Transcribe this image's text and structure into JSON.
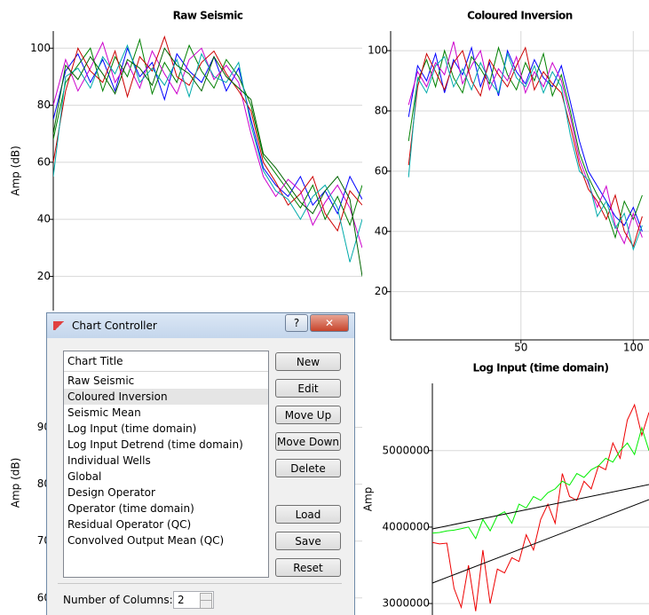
{
  "chart_data": [
    {
      "type": "line",
      "title": "Raw Seismic",
      "y_label": "Amp (dB)",
      "x": [
        0,
        4,
        8,
        12,
        16,
        20,
        24,
        28,
        32,
        36,
        40,
        44,
        48,
        52,
        56,
        60,
        64,
        68,
        72,
        76,
        80,
        84,
        88,
        92,
        96,
        100
      ],
      "xlim": [
        0,
        100
      ],
      "ylim": [
        8,
        106
      ],
      "yticks": [
        20,
        40,
        60,
        80,
        100
      ],
      "grid": true,
      "series": [
        {
          "color": "#0000ff",
          "values": [
            75,
            92,
            98,
            88,
            96,
            85,
            100,
            90,
            95,
            82,
            98,
            92,
            88,
            97,
            85,
            93,
            75,
            58,
            52,
            48,
            55,
            45,
            50,
            42,
            55,
            47
          ]
        },
        {
          "color": "#008000",
          "values": [
            68,
            88,
            94,
            100,
            85,
            97,
            90,
            103,
            84,
            95,
            88,
            101,
            92,
            86,
            96,
            90,
            80,
            62,
            56,
            50,
            44,
            52,
            40,
            48,
            38,
            52
          ]
        },
        {
          "color": "#cc00cc",
          "values": [
            80,
            96,
            85,
            93,
            102,
            88,
            95,
            86,
            99,
            91,
            84,
            96,
            100,
            89,
            94,
            88,
            70,
            55,
            48,
            54,
            50,
            38,
            46,
            52,
            44,
            30
          ]
        },
        {
          "color": "#cc0000",
          "values": [
            60,
            85,
            100,
            92,
            88,
            99,
            83,
            97,
            92,
            104,
            90,
            87,
            95,
            99,
            91,
            85,
            78,
            60,
            53,
            45,
            49,
            55,
            42,
            36,
            50,
            45
          ]
        },
        {
          "color": "#00aaaa",
          "values": [
            55,
            90,
            93,
            86,
            97,
            91,
            101,
            88,
            93,
            87,
            96,
            83,
            98,
            90,
            88,
            95,
            73,
            57,
            50,
            47,
            40,
            48,
            52,
            44,
            25,
            40
          ]
        },
        {
          "color": "#006400",
          "values": [
            70,
            94,
            89,
            97,
            91,
            84,
            96,
            93,
            87,
            100,
            94,
            91,
            85,
            97,
            90,
            86,
            82,
            63,
            58,
            52,
            46,
            42,
            50,
            55,
            47,
            20
          ]
        }
      ]
    },
    {
      "type": "line",
      "title": "Coloured Inversion",
      "x": [
        0,
        4,
        8,
        12,
        16,
        20,
        24,
        28,
        32,
        36,
        40,
        44,
        48,
        52,
        56,
        60,
        64,
        68,
        72,
        76,
        80,
        84,
        88,
        92,
        96,
        100,
        104
      ],
      "xlim": [
        -8,
        107
      ],
      "xticks": [
        50,
        100
      ],
      "ylim": [
        4,
        106.5
      ],
      "yticks": [
        20,
        40,
        60,
        80,
        100
      ],
      "grid": true,
      "series": [
        {
          "color": "#0000ff",
          "values": [
            78,
            95,
            90,
            99,
            86,
            97,
            92,
            101,
            88,
            96,
            85,
            100,
            93,
            89,
            97,
            91,
            88,
            95,
            83,
            70,
            60,
            55,
            50,
            45,
            42,
            48,
            40
          ]
        },
        {
          "color": "#008000",
          "values": [
            70,
            90,
            97,
            88,
            100,
            91,
            86,
            98,
            94,
            89,
            101,
            92,
            87,
            96,
            90,
            99,
            85,
            92,
            80,
            66,
            58,
            52,
            47,
            38,
            50,
            44,
            52
          ]
        },
        {
          "color": "#cc00cc",
          "values": [
            82,
            93,
            88,
            96,
            92,
            103,
            89,
            95,
            100,
            87,
            94,
            90,
            98,
            86,
            93,
            88,
            96,
            90,
            78,
            64,
            56,
            48,
            55,
            42,
            36,
            46,
            38
          ]
        },
        {
          "color": "#cc0000",
          "values": [
            62,
            88,
            99,
            93,
            87,
            96,
            100,
            90,
            85,
            97,
            92,
            88,
            95,
            101,
            87,
            93,
            89,
            86,
            75,
            62,
            54,
            50,
            44,
            52,
            40,
            35,
            45
          ]
        },
        {
          "color": "#00aaaa",
          "values": [
            58,
            91,
            86,
            95,
            98,
            88,
            94,
            87,
            96,
            90,
            86,
            99,
            91,
            88,
            95,
            86,
            93,
            88,
            72,
            60,
            57,
            45,
            50,
            41,
            46,
            34,
            42
          ]
        }
      ]
    },
    {
      "type": "line",
      "title": "Log Input (time domain)",
      "y_label": "Amp",
      "x": [
        0,
        1,
        2,
        3,
        4,
        5,
        6,
        7,
        8,
        9,
        10,
        11,
        12,
        13,
        14,
        15,
        16,
        17,
        18,
        19,
        20,
        21,
        22,
        23,
        24,
        25,
        26,
        27,
        28,
        29,
        30
      ],
      "xlim": [
        0,
        30
      ],
      "ylim": [
        2850000,
        5880000
      ],
      "yticks": [
        3000000,
        4000000,
        5000000
      ],
      "grid": true,
      "series": [
        {
          "color": "#ee0000",
          "values": [
            3800000,
            3780000,
            3790000,
            3200000,
            2950000,
            3500000,
            2900000,
            3700000,
            3000000,
            3450000,
            3400000,
            3600000,
            3550000,
            3900000,
            3700000,
            4100000,
            4300000,
            4050000,
            4700000,
            4400000,
            4350000,
            4600000,
            4500000,
            4800000,
            4750000,
            5100000,
            4900000,
            5400000,
            5600000,
            5200000,
            5500000
          ]
        },
        {
          "color": "#00ee00",
          "values": [
            3920000,
            3930000,
            3950000,
            3960000,
            3980000,
            4000000,
            3850000,
            4100000,
            3950000,
            4150000,
            4200000,
            4050000,
            4300000,
            4250000,
            4400000,
            4350000,
            4450000,
            4500000,
            4600000,
            4550000,
            4700000,
            4650000,
            4750000,
            4800000,
            4900000,
            4850000,
            5000000,
            5100000,
            4950000,
            5300000,
            5000000
          ]
        }
      ]
    },
    {
      "type": "line",
      "y_label": "Amp (dB)",
      "ylim": [
        57,
        103.5
      ],
      "yticks": [
        60,
        70,
        80,
        90
      ],
      "grid": true
    }
  ],
  "dialog": {
    "title": "Chart Controller",
    "help": "?",
    "close": "✕",
    "list_header": "Chart Title",
    "items": [
      "Raw Seismic",
      "Coloured Inversion",
      "Seismic Mean",
      "Log Input (time domain)",
      "Log Input Detrend (time domain)",
      "Individual Wells",
      "Global",
      "Design Operator",
      "Operator (time domain)",
      "Residual Operator (QC)",
      "Convolved Output Mean (QC)"
    ],
    "selected": 1,
    "buttons": [
      "New",
      "Edit",
      "Move Up",
      "Move Down",
      "Delete",
      "Load",
      "Save",
      "Reset"
    ],
    "columns_label": "Number of Columns:",
    "columns_value": "2"
  }
}
